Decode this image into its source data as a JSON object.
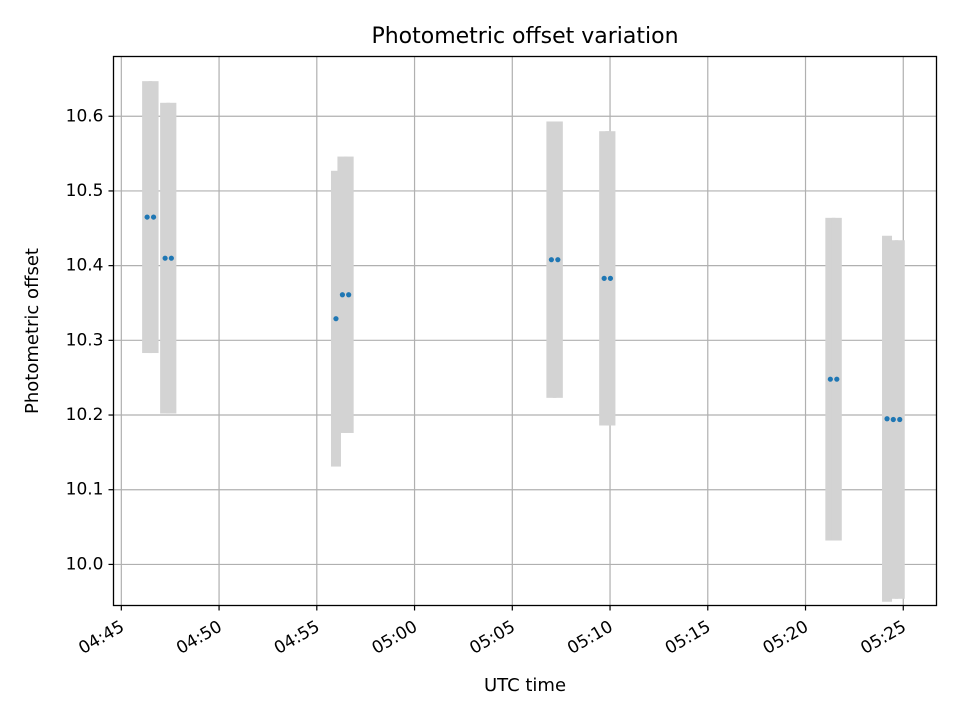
{
  "chart_data": {
    "type": "scatter",
    "title": "Photometric offset variation",
    "xlabel": "UTC time",
    "ylabel": "Photometric offset",
    "x_tick_labels": [
      "04:45",
      "04:50",
      "04:55",
      "05:00",
      "05:05",
      "05:10",
      "05:15",
      "05:20",
      "05:25"
    ],
    "x_ticks_minutes": [
      285,
      290,
      295,
      300,
      305,
      310,
      315,
      320,
      325
    ],
    "xlim_minutes": [
      284.6,
      326.7
    ],
    "y_tick_labels": [
      "10.0",
      "10.1",
      "10.2",
      "10.3",
      "10.4",
      "10.5",
      "10.6"
    ],
    "y_ticks": [
      10.0,
      10.1,
      10.2,
      10.3,
      10.4,
      10.5,
      10.6
    ],
    "ylim": [
      9.945,
      10.68
    ],
    "grid": true,
    "colors": {
      "point": "#1f77b4",
      "error_bar": "#d3d3d3",
      "grid": "#b0b0b0"
    },
    "points": [
      {
        "time": "04:46:19",
        "x": 286.32,
        "y": 10.465,
        "yerr": 0.182
      },
      {
        "time": "04:46:39",
        "x": 286.65,
        "y": 10.465,
        "yerr": 0.182
      },
      {
        "time": "04:47:14",
        "x": 287.24,
        "y": 10.41,
        "yerr": 0.208
      },
      {
        "time": "04:47:33",
        "x": 287.56,
        "y": 10.41,
        "yerr": 0.208
      },
      {
        "time": "04:55:59",
        "x": 295.98,
        "y": 10.329,
        "yerr": 0.198
      },
      {
        "time": "04:56:18",
        "x": 296.31,
        "y": 10.361,
        "yerr": 0.185
      },
      {
        "time": "04:56:38",
        "x": 296.63,
        "y": 10.361,
        "yerr": 0.185
      },
      {
        "time": "05:07:00",
        "x": 307.0,
        "y": 10.408,
        "yerr": 0.185
      },
      {
        "time": "05:07:20",
        "x": 307.33,
        "y": 10.408,
        "yerr": 0.185
      },
      {
        "time": "05:09:42",
        "x": 309.7,
        "y": 10.383,
        "yerr": 0.197
      },
      {
        "time": "05:10:01",
        "x": 310.02,
        "y": 10.383,
        "yerr": 0.197
      },
      {
        "time": "05:21:16",
        "x": 321.27,
        "y": 10.248,
        "yerr": 0.216
      },
      {
        "time": "05:21:36",
        "x": 321.6,
        "y": 10.248,
        "yerr": 0.216
      },
      {
        "time": "05:24:10",
        "x": 324.17,
        "y": 10.195,
        "yerr": 0.245
      },
      {
        "time": "05:24:29",
        "x": 324.49,
        "y": 10.194,
        "yerr": 0.24
      },
      {
        "time": "05:24:49",
        "x": 324.82,
        "y": 10.194,
        "yerr": 0.24
      }
    ]
  }
}
